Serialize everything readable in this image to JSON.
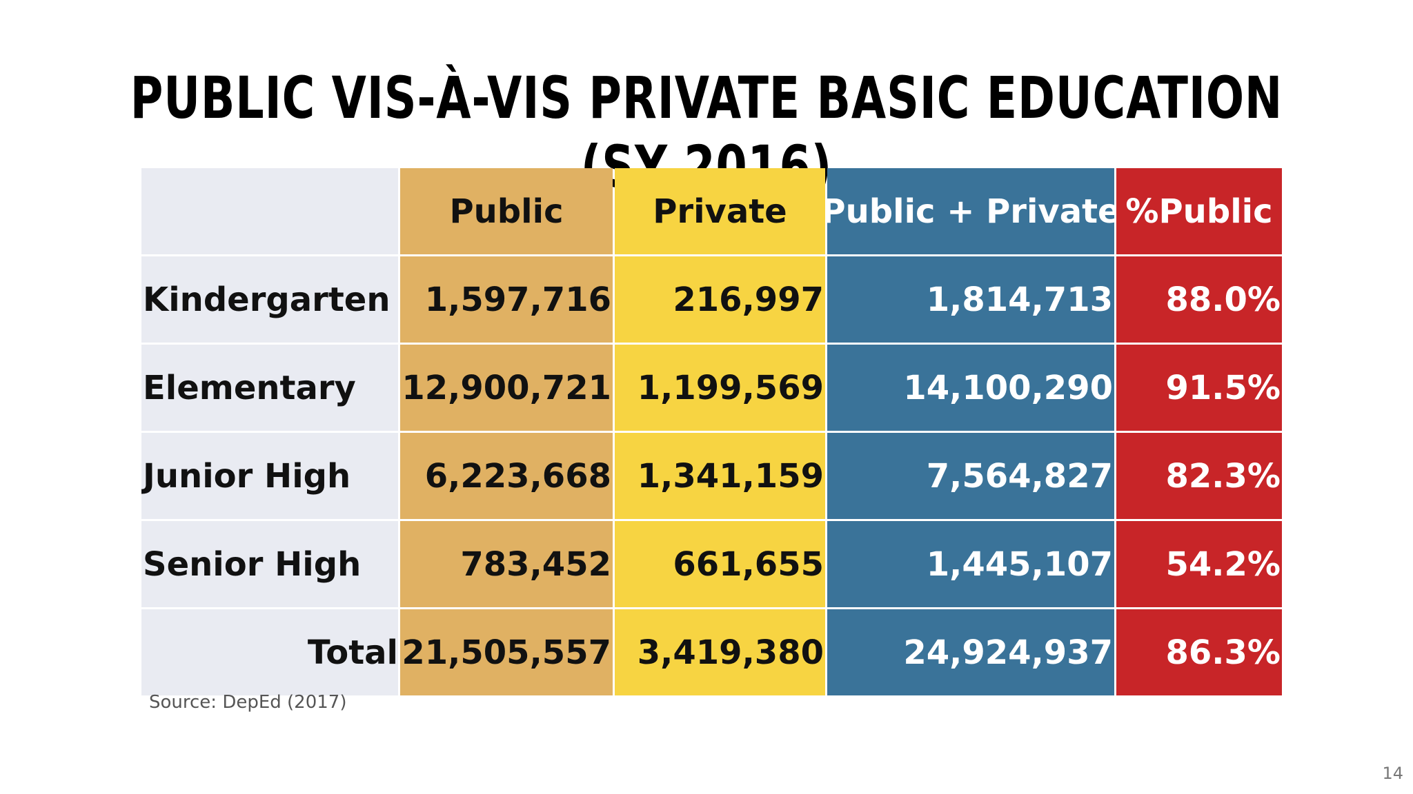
{
  "slide": {
    "title": "Public vis-à-vis Private Basic Education (SY 2016)",
    "source": "Source: DepEd (2017)",
    "page_number": "14"
  },
  "table": {
    "headers": [
      "",
      "Public",
      "Private",
      "Public + Private",
      "%Public"
    ],
    "rows": [
      {
        "level": "Kindergarten",
        "public": "1,597,716",
        "private": "216,997",
        "total": "1,814,713",
        "pct_public": "88.0%"
      },
      {
        "level": "Elementary",
        "public": "12,900,721",
        "private": "1,199,569",
        "total": "14,100,290",
        "pct_public": "91.5%"
      },
      {
        "level": "Junior High",
        "public": "6,223,668",
        "private": "1,341,159",
        "total": "7,564,827",
        "pct_public": "82.3%"
      },
      {
        "level": "Senior High",
        "public": "783,452",
        "private": "661,655",
        "total": "1,445,107",
        "pct_public": "54.2%"
      },
      {
        "level": "Total",
        "public": "21,505,557",
        "private": "3,419,380",
        "total": "24,924,937",
        "pct_public": "86.3%"
      }
    ],
    "colors": {
      "label_column": "#e9ebf2",
      "public": "#e0b163",
      "private": "#f7d442",
      "public_plus_private": "#3a7399",
      "pct_public": "#c82528"
    }
  }
}
